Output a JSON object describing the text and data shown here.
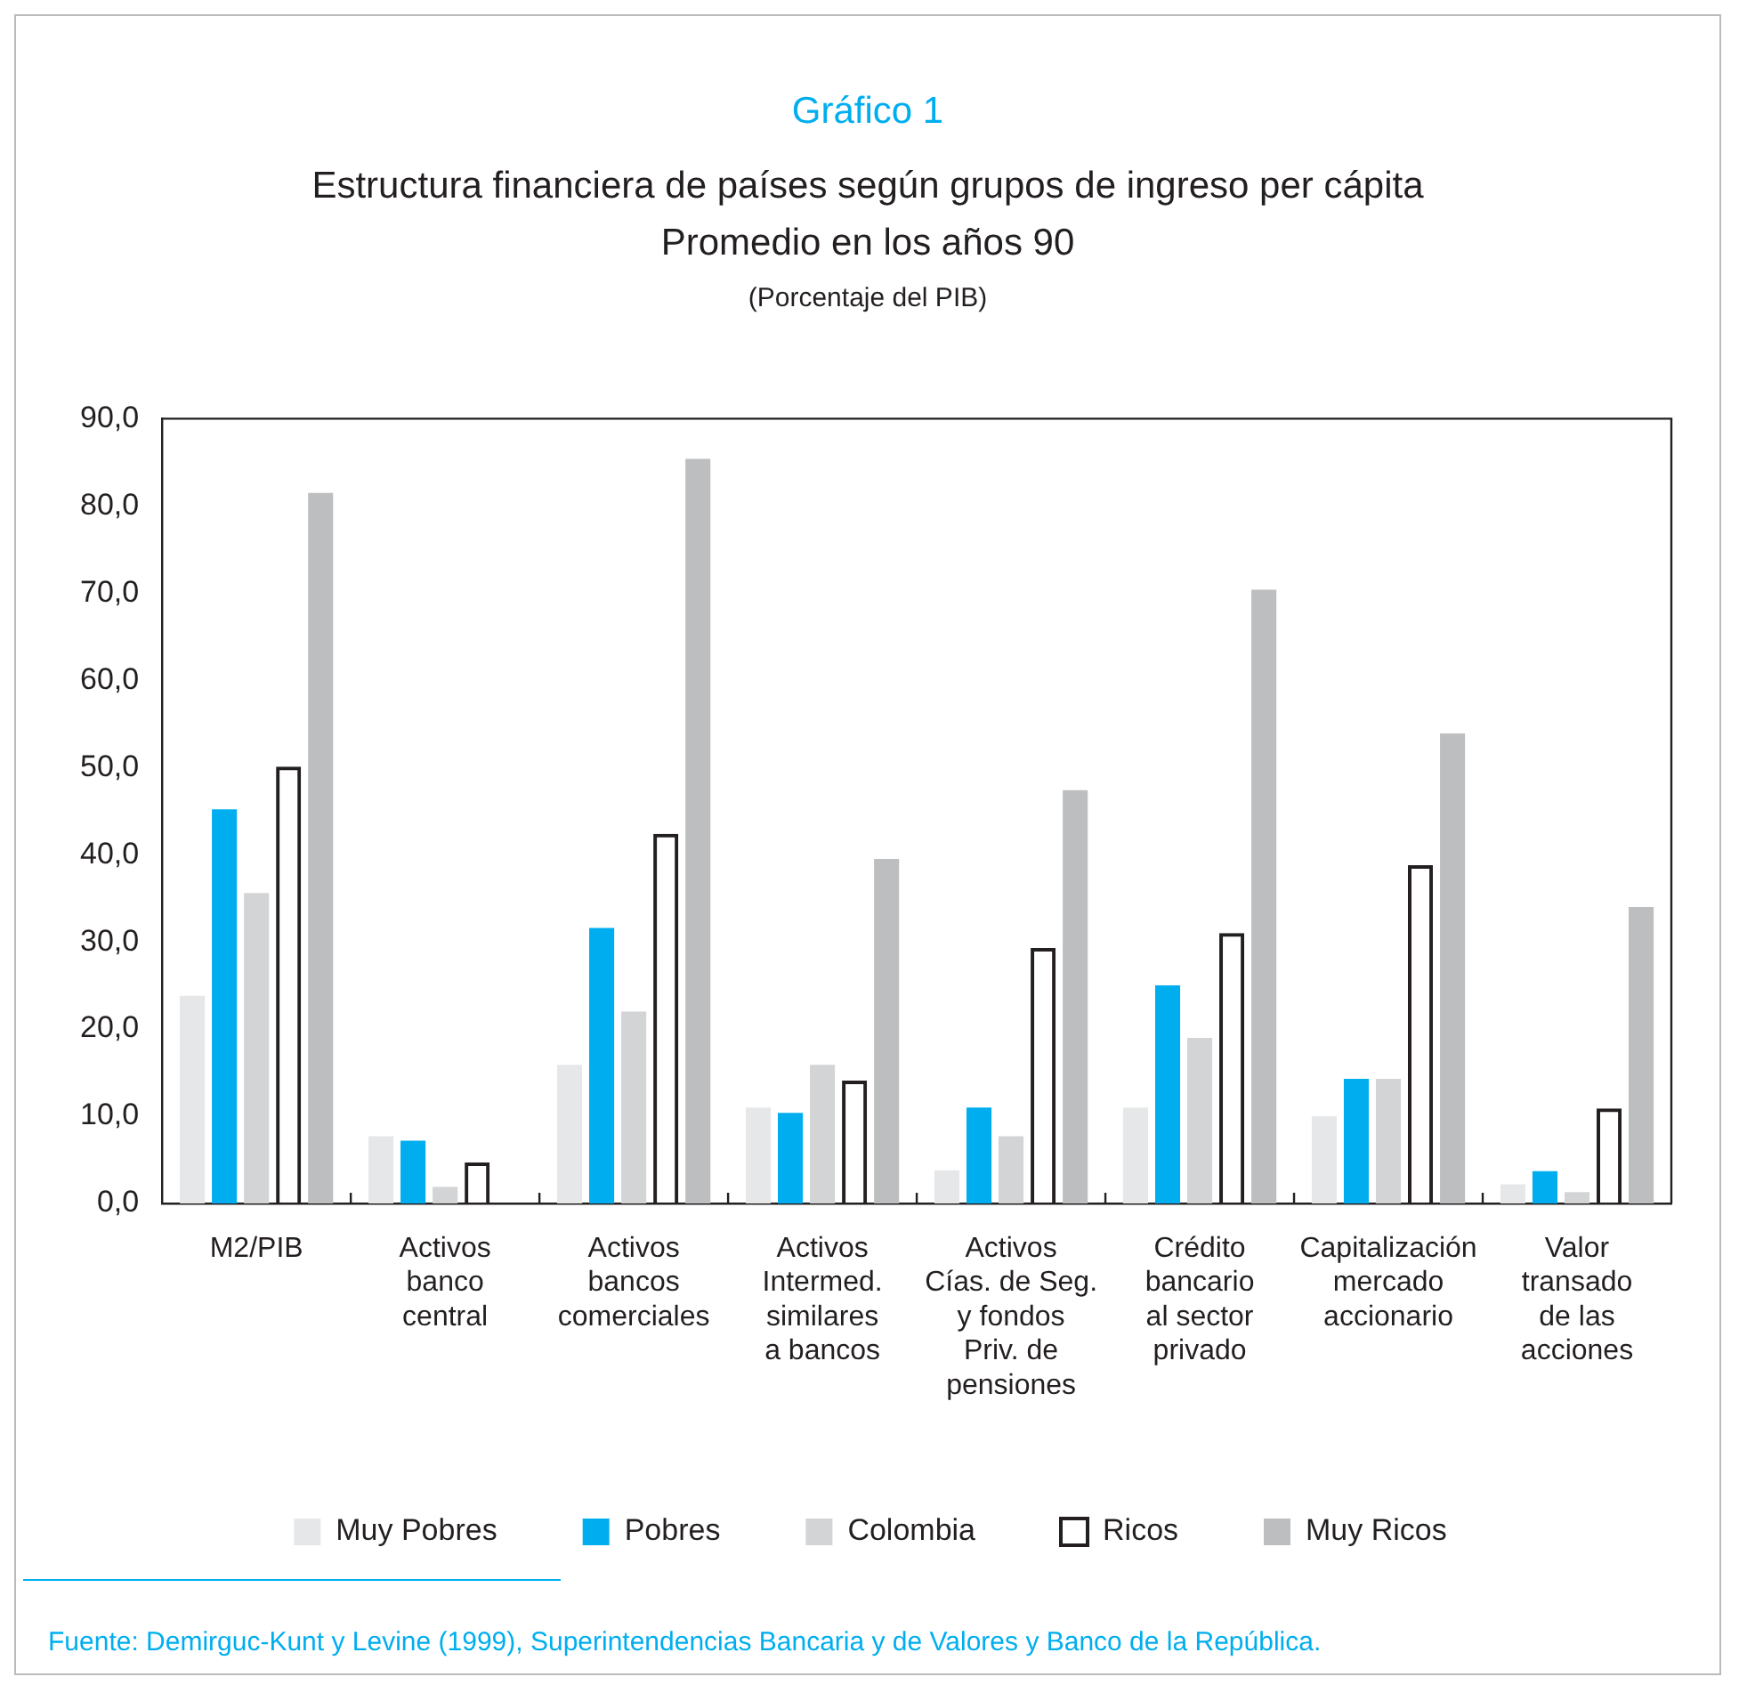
{
  "chart_data": {
    "type": "bar",
    "title": "Gráfico 1",
    "subtitle": "Estructura financiera de países según grupos de ingreso per cápita\nPromedio en los años 90",
    "annotations": [
      "(Porcentaje del PIB)",
      "Fuente: Demirguc-Kunt y Levine (1999), Superintendencias Bancaria y de Valores y Banco de la República."
    ],
    "categories": [
      "M2/PIB",
      "Activos\nbanco\ncentral",
      "Activos\nbancos\ncomerciales",
      "Activos\nIntermed.\nsimilares\na bancos",
      "Activos\nCías. de Seg.\ny fondos\nPriv. de\npensiones",
      "Crédito\nbancario\nal sector\nprivado",
      "Capitalización\nmercado\naccionario",
      "Valor\ntransado\nde las\nacciones"
    ],
    "series": [
      {
        "name": "Muy Pobres",
        "color": "#e6e7e8",
        "values": [
          23.8,
          7.7,
          15.9,
          11.0,
          3.8,
          11.0,
          10.0,
          2.2
        ]
      },
      {
        "name": "Pobres",
        "color": "#00aeef",
        "values": [
          45.2,
          7.2,
          31.6,
          10.4,
          11.0,
          25.0,
          14.3,
          3.7
        ]
      },
      {
        "name": "Colombia",
        "color": "#d3d4d6",
        "values": [
          35.6,
          1.9,
          22.0,
          15.9,
          7.7,
          19.0,
          14.3,
          1.3
        ]
      },
      {
        "name": "Ricos",
        "color": "#231f20",
        "values": [
          50.1,
          4.7,
          42.4,
          14.1,
          29.3,
          31.0,
          38.8,
          10.9
        ]
      },
      {
        "name": "Muy Ricos",
        "color": "#bcbec0",
        "values": [
          81.5,
          null,
          85.4,
          39.5,
          47.4,
          70.4,
          53.9,
          34.0
        ]
      }
    ],
    "ylim": [
      0,
      90
    ],
    "yticks": [
      {
        "value": 0,
        "label": "0,0"
      },
      {
        "value": 10,
        "label": "10,0"
      },
      {
        "value": 20,
        "label": "20,0"
      },
      {
        "value": 30,
        "label": "30,0"
      },
      {
        "value": 40,
        "label": "40,0"
      },
      {
        "value": 50,
        "label": "50,0"
      },
      {
        "value": 60,
        "label": "60,0"
      },
      {
        "value": 70,
        "label": "70,0"
      },
      {
        "value": 80,
        "label": "80,0"
      },
      {
        "value": 90,
        "label": "90,0"
      }
    ],
    "grid": false,
    "legend": "bottom"
  }
}
